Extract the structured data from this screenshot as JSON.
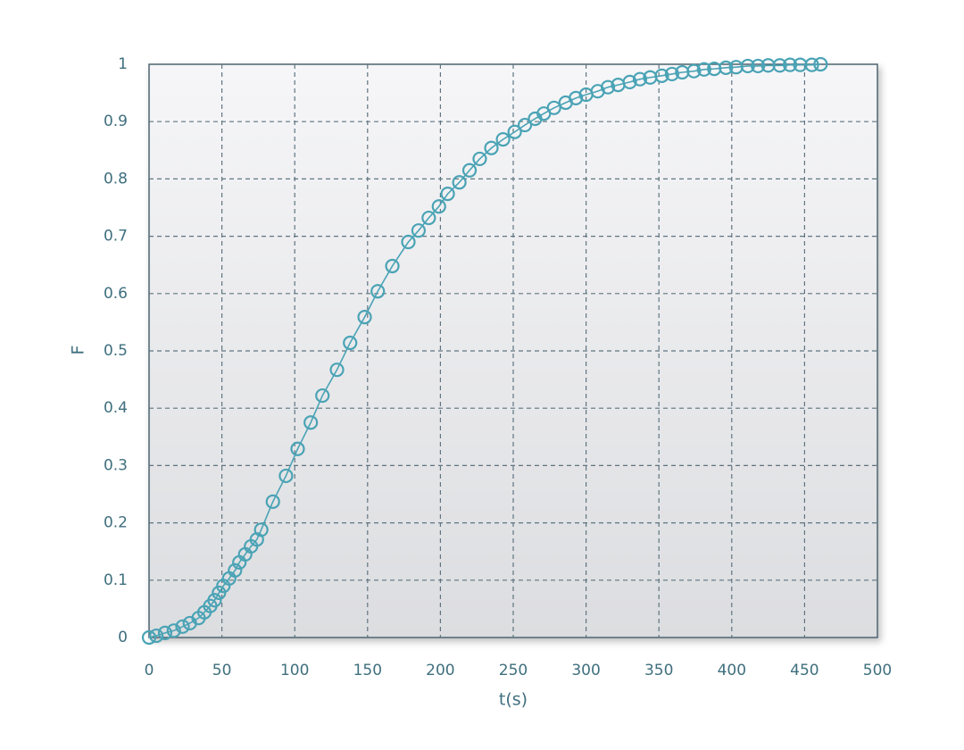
{
  "chart_data": {
    "type": "line",
    "x_label": "t(s)",
    "y_label": "F",
    "x": [
      0,
      5,
      11,
      17,
      23,
      28,
      34,
      38,
      42,
      45,
      48,
      51,
      55,
      59,
      62,
      66,
      70,
      74,
      77,
      85,
      94,
      102,
      111,
      119,
      129,
      138,
      148,
      157,
      167,
      178,
      185,
      192,
      199,
      205,
      213,
      220,
      227,
      235,
      243,
      251,
      258,
      265,
      271,
      278,
      286,
      293,
      300,
      308,
      315,
      322,
      330,
      337,
      344,
      352,
      359,
      366,
      374,
      381,
      388,
      396,
      403,
      411,
      418,
      425,
      433,
      440,
      447,
      455,
      461
    ],
    "values": [
      0,
      0.003,
      0.008,
      0.012,
      0.019,
      0.025,
      0.034,
      0.044,
      0.055,
      0.065,
      0.078,
      0.09,
      0.103,
      0.117,
      0.131,
      0.145,
      0.159,
      0.171,
      0.188,
      0.237,
      0.282,
      0.329,
      0.375,
      0.422,
      0.467,
      0.514,
      0.559,
      0.604,
      0.648,
      0.69,
      0.71,
      0.732,
      0.752,
      0.774,
      0.794,
      0.815,
      0.835,
      0.854,
      0.869,
      0.882,
      0.894,
      0.905,
      0.914,
      0.924,
      0.933,
      0.941,
      0.947,
      0.953,
      0.96,
      0.964,
      0.969,
      0.974,
      0.977,
      0.98,
      0.983,
      0.986,
      0.988,
      0.991,
      0.992,
      0.994,
      0.995,
      0.997,
      0.997,
      0.998,
      0.998,
      0.999,
      0.999,
      0.999,
      1
    ],
    "color": "#4aa3b5",
    "markers": true,
    "grid": true,
    "xlim": [
      0,
      500
    ],
    "xticks": [
      0,
      50,
      100,
      150,
      200,
      250,
      300,
      350,
      400,
      450,
      500
    ],
    "ylim": [
      0,
      1
    ],
    "yticks": [
      0,
      0.1,
      0.2,
      0.3,
      0.4,
      0.5,
      0.6,
      0.7,
      0.8,
      0.9,
      1
    ]
  }
}
